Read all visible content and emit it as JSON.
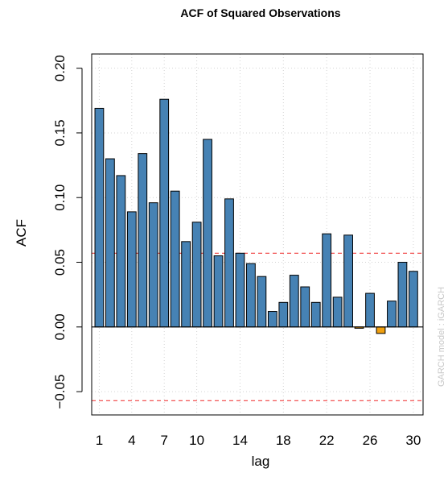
{
  "chart_data": {
    "type": "bar",
    "title": "ACF of Squared Observations",
    "xlabel": "lag",
    "ylabel": "ACF",
    "watermark": "GARCH model : iGARCH",
    "x": [
      1,
      2,
      3,
      4,
      5,
      6,
      7,
      8,
      9,
      10,
      11,
      12,
      13,
      14,
      15,
      16,
      17,
      18,
      19,
      20,
      21,
      22,
      23,
      24,
      25,
      26,
      27,
      28,
      29,
      30
    ],
    "values": [
      0.169,
      0.13,
      0.117,
      0.089,
      0.134,
      0.096,
      0.176,
      0.105,
      0.066,
      0.081,
      0.145,
      0.055,
      0.099,
      0.057,
      0.049,
      0.039,
      0.012,
      0.019,
      0.04,
      0.031,
      0.019,
      0.072,
      0.023,
      0.071,
      -0.001,
      0.026,
      -0.005,
      0.02,
      0.05,
      0.043
    ],
    "ci_bound": 0.057,
    "xlim": [
      0.3,
      30.9
    ],
    "ylim": [
      -0.068,
      0.211
    ],
    "x_ticks": [
      1,
      4,
      7,
      10,
      14,
      18,
      22,
      26,
      30
    ],
    "x_tick_labels": [
      "1",
      "4",
      "7",
      "10",
      "14",
      "18",
      "22",
      "26",
      "30"
    ],
    "y_ticks": [
      -0.05,
      0.0,
      0.05,
      0.1,
      0.15,
      0.2
    ],
    "y_tick_labels": [
      "−0.05",
      "0.00",
      "0.05",
      "0.10",
      "0.15",
      "0.20"
    ],
    "grid": true,
    "colors": {
      "positive_bar": "#4682b4",
      "negative_bar": "#f0a010",
      "ci_line": "#f04040",
      "grid": "#d3d3d3",
      "zero_line": "#000000"
    }
  }
}
